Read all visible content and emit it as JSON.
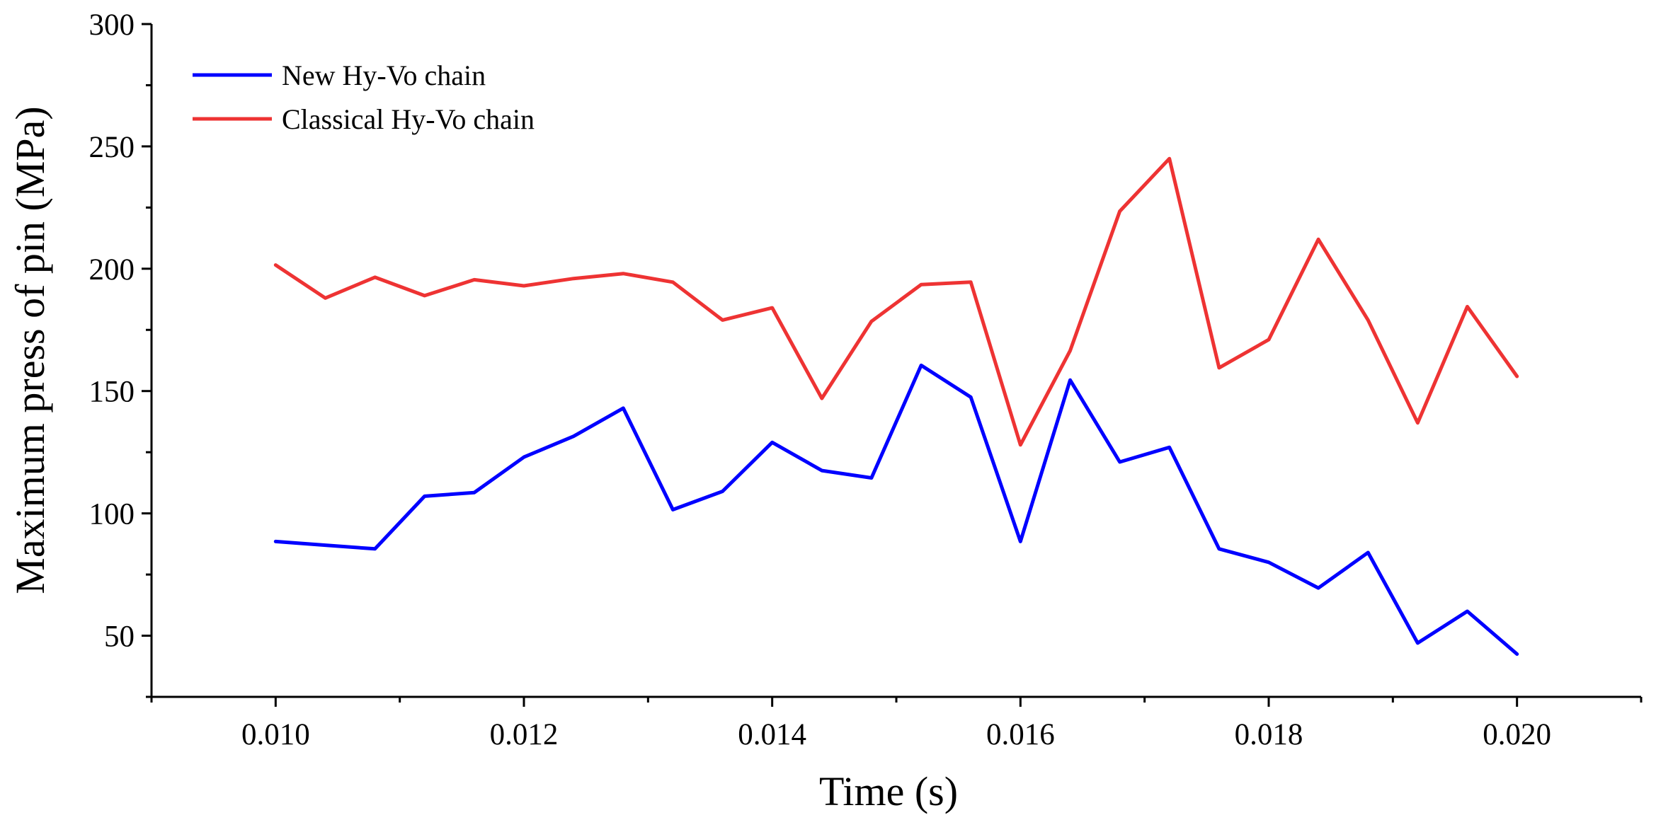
{
  "chart_data": {
    "type": "line",
    "title": "",
    "xlabel": "Time (s)",
    "ylabel": "Maximum press of pin (MPa)",
    "xlim": [
      0.009,
      0.021
    ],
    "ylim": [
      25,
      300
    ],
    "x_ticks": [
      0.01,
      0.012,
      0.014,
      0.016,
      0.018,
      0.02
    ],
    "x_tick_labels": [
      "0.010",
      "0.012",
      "0.014",
      "0.016",
      "0.018",
      "0.020"
    ],
    "x_minor_ticks": [
      0.009,
      0.011,
      0.013,
      0.015,
      0.017,
      0.019,
      0.021
    ],
    "y_ticks": [
      50,
      100,
      150,
      200,
      250,
      300
    ],
    "y_tick_labels": [
      "50",
      "100",
      "150",
      "200",
      "250",
      "300"
    ],
    "y_minor_ticks": [
      25,
      75,
      125,
      175,
      225,
      275
    ],
    "grid": false,
    "legend_position": "top-left",
    "x": [
      0.01,
      0.0104,
      0.0108,
      0.0112,
      0.0116,
      0.012,
      0.0124,
      0.0128,
      0.0132,
      0.0136,
      0.014,
      0.0144,
      0.0148,
      0.0152,
      0.0156,
      0.016,
      0.0164,
      0.0168,
      0.0172,
      0.0176,
      0.018,
      0.0184,
      0.0188,
      0.0192,
      0.0196,
      0.02
    ],
    "series": [
      {
        "name": "New Hy-Vo chain",
        "color": "#0000ff",
        "values": [
          88.5,
          87,
          85.5,
          107,
          108.5,
          123,
          131.5,
          143,
          101.5,
          109,
          129,
          117.5,
          114.5,
          160.5,
          147.5,
          88.5,
          154.5,
          121,
          127,
          85.5,
          80,
          69.5,
          84,
          47,
          60,
          42.5
        ]
      },
      {
        "name": "Classical Hy-Vo chain",
        "color": "#ee3333",
        "values": [
          201.5,
          188,
          196.5,
          189,
          195.5,
          193,
          196,
          198,
          194.5,
          179,
          184,
          147,
          178.5,
          193.5,
          194.5,
          128,
          166.5,
          223.5,
          245,
          159.5,
          171,
          212,
          179,
          137,
          184.5,
          156
        ]
      }
    ]
  }
}
